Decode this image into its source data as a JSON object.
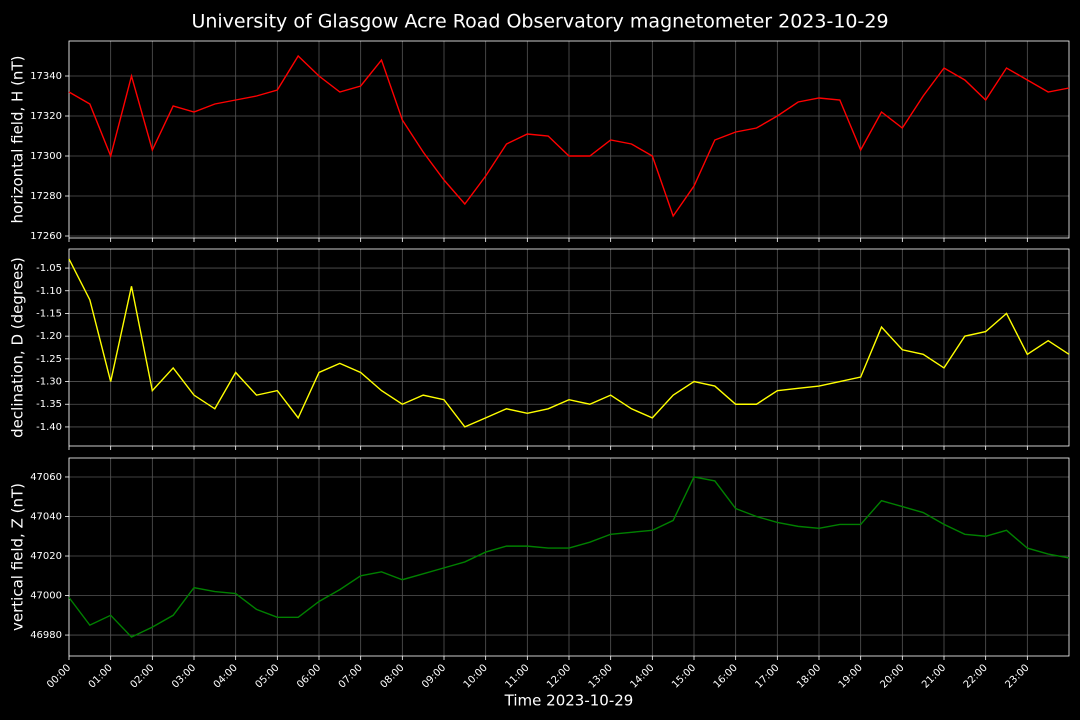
{
  "chart_data": [
    {
      "type": "line",
      "title": "University of Glasgow Acre Road Observatory magnetometer 2023-10-29",
      "ylabel": "horizontal field, H (nT)",
      "color": "#ff0000",
      "grid": true,
      "x": [
        0,
        0.5,
        1,
        1.5,
        2,
        2.5,
        3,
        3.5,
        4,
        4.5,
        5,
        5.5,
        6,
        6.5,
        7,
        7.5,
        8,
        8.5,
        9,
        9.5,
        10,
        10.5,
        11,
        11.5,
        12,
        12.5,
        13,
        13.5,
        14,
        14.5,
        15,
        15.5,
        16,
        16.5,
        17,
        17.5,
        18,
        18.5,
        19,
        19.5,
        20,
        20.5,
        21,
        21.5,
        22,
        22.5,
        23,
        23.5,
        24
      ],
      "values": [
        17332,
        17326,
        17300,
        17340,
        17303,
        17325,
        17322,
        17326,
        17328,
        17330,
        17333,
        17350,
        17340,
        17332,
        17335,
        17348,
        17318,
        17302,
        17288,
        17276,
        17290,
        17306,
        17311,
        17310,
        17300,
        17300,
        17308,
        17306,
        17300,
        17270,
        17285,
        17308,
        17312,
        17314,
        17320,
        17327,
        17329,
        17328,
        17303,
        17322,
        17314,
        17330,
        17344,
        17338,
        17328,
        17344,
        17338,
        17332,
        17334
      ],
      "xlim": [
        0,
        24
      ],
      "ylim": [
        17259,
        17357.5
      ],
      "yticks": [
        17260,
        17280,
        17300,
        17320,
        17340
      ]
    },
    {
      "type": "line",
      "ylabel": "declination, D (degrees)",
      "color": "#ffff00",
      "grid": true,
      "x": [
        0,
        0.5,
        1,
        1.5,
        2,
        2.5,
        3,
        3.5,
        4,
        4.5,
        5,
        5.5,
        6,
        6.5,
        7,
        7.5,
        8,
        8.5,
        9,
        9.5,
        10,
        10.5,
        11,
        11.5,
        12,
        12.5,
        13,
        13.5,
        14,
        14.5,
        15,
        15.5,
        16,
        16.5,
        17,
        17.5,
        18,
        18.5,
        19,
        19.5,
        20,
        20.5,
        21,
        21.5,
        22,
        22.5,
        23,
        23.5,
        24
      ],
      "values": [
        -1.03,
        -1.12,
        -1.3,
        -1.09,
        -1.32,
        -1.27,
        -1.33,
        -1.36,
        -1.28,
        -1.33,
        -1.32,
        -1.38,
        -1.28,
        -1.26,
        -1.28,
        -1.32,
        -1.35,
        -1.33,
        -1.34,
        -1.4,
        -1.38,
        -1.36,
        -1.37,
        -1.36,
        -1.34,
        -1.35,
        -1.33,
        -1.36,
        -1.38,
        -1.33,
        -1.3,
        -1.31,
        -1.35,
        -1.35,
        -1.32,
        -1.315,
        -1.31,
        -1.3,
        -1.29,
        -1.18,
        -1.23,
        -1.24,
        -1.27,
        -1.2,
        -1.19,
        -1.15,
        -1.24,
        -1.21,
        -1.24
      ],
      "xlim": [
        0,
        24
      ],
      "ylim": [
        -1.442,
        -1.008
      ],
      "yticks": [
        -1.05,
        {
          "value": -1.1,
          "label": "-1.10"
        },
        -1.15,
        {
          "value": -1.2,
          "label": "-1.20"
        },
        -1.25,
        {
          "value": -1.3,
          "label": "-1.30"
        },
        -1.35,
        {
          "value": -1.4,
          "label": "-1.40"
        }
      ]
    },
    {
      "type": "line",
      "ylabel": "vertical field, Z (nT)",
      "xlabel": "Time 2023-10-29",
      "color": "#008000",
      "grid": true,
      "x": [
        0,
        0.5,
        1,
        1.5,
        2,
        2.5,
        3,
        3.5,
        4,
        4.5,
        5,
        5.5,
        6,
        6.5,
        7,
        7.5,
        8,
        8.5,
        9,
        9.5,
        10,
        10.5,
        11,
        11.5,
        12,
        12.5,
        13,
        13.5,
        14,
        14.5,
        15,
        15.5,
        16,
        16.5,
        17,
        17.5,
        18,
        18.5,
        19,
        19.5,
        20,
        20.5,
        21,
        21.5,
        22,
        22.5,
        23,
        23.5,
        24
      ],
      "values": [
        46999,
        46985,
        46990,
        46979,
        46984,
        46990,
        47004,
        47002,
        47001,
        46993,
        46989,
        46989,
        46997,
        47003,
        47010,
        47012,
        47008,
        47011,
        47014,
        47017,
        47022,
        47025,
        47025,
        47024,
        47024,
        47027,
        47031,
        47032,
        47033,
        47038,
        47060,
        47058,
        47044,
        47040,
        47037,
        47035,
        47034,
        47036,
        47036,
        47048,
        47045,
        47042,
        47036,
        47031,
        47030,
        47033,
        47024,
        47021,
        47019
      ],
      "xlim": [
        0,
        24
      ],
      "ylim": [
        46969.4,
        47069.6
      ],
      "yticks": [
        46980,
        47000,
        47020,
        47040,
        47060
      ],
      "xticks": [
        {
          "value": 0,
          "label": "00:00"
        },
        {
          "value": 1,
          "label": "01:00"
        },
        {
          "value": 2,
          "label": "02:00"
        },
        {
          "value": 3,
          "label": "03:00"
        },
        {
          "value": 4,
          "label": "04:00"
        },
        {
          "value": 5,
          "label": "05:00"
        },
        {
          "value": 6,
          "label": "06:00"
        },
        {
          "value": 7,
          "label": "07:00"
        },
        {
          "value": 8,
          "label": "08:00"
        },
        {
          "value": 9,
          "label": "09:00"
        },
        {
          "value": 10,
          "label": "10:00"
        },
        {
          "value": 11,
          "label": "11:00"
        },
        {
          "value": 12,
          "label": "12:00"
        },
        {
          "value": 13,
          "label": "13:00"
        },
        {
          "value": 14,
          "label": "14:00"
        },
        {
          "value": 15,
          "label": "15:00"
        },
        {
          "value": 16,
          "label": "16:00"
        },
        {
          "value": 17,
          "label": "17:00"
        },
        {
          "value": 18,
          "label": "18:00"
        },
        {
          "value": 19,
          "label": "19:00"
        },
        {
          "value": 20,
          "label": "20:00"
        },
        {
          "value": 21,
          "label": "21:00"
        },
        {
          "value": 22,
          "label": "22:00"
        },
        {
          "value": 23,
          "label": "23:00"
        }
      ]
    }
  ]
}
